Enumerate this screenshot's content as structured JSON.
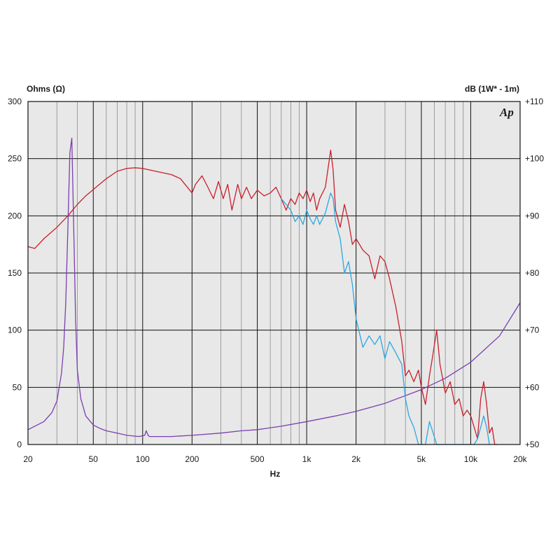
{
  "chart_data": {
    "type": "line",
    "left_axis_title": "Ohms (Ω)",
    "right_axis_title": "dB (1W* - 1m)",
    "x_axis_title": "Hz",
    "logo_text": "Ap",
    "x_scale": "log",
    "xlim": [
      20,
      20000
    ],
    "left_ylim": [
      0,
      300
    ],
    "right_ylim": [
      50,
      110
    ],
    "grid": true,
    "x_tick_labels": [
      {
        "value": 20,
        "label": "20"
      },
      {
        "value": 50,
        "label": "50"
      },
      {
        "value": 100,
        "label": "100"
      },
      {
        "value": 200,
        "label": "200"
      },
      {
        "value": 500,
        "label": "500"
      },
      {
        "value": 1000,
        "label": "1k"
      },
      {
        "value": 2000,
        "label": "2k"
      },
      {
        "value": 5000,
        "label": "5k"
      },
      {
        "value": 10000,
        "label": "10k"
      },
      {
        "value": 20000,
        "label": "20k"
      }
    ],
    "left_tick_labels": [
      "0",
      "50",
      "100",
      "150",
      "200",
      "250",
      "300"
    ],
    "right_tick_labels": [
      "+50",
      "+60",
      "+70",
      "+80",
      "+90",
      "+100",
      "+110"
    ],
    "colors": {
      "impedance": "#7a3fb0",
      "spl_on_axis": "#c8202c",
      "spl_off_axis": "#2aa8e0",
      "plot_background": "#e8e8e8",
      "grid_major": "#111111",
      "grid_minor": "#8a8a8a"
    },
    "series": [
      {
        "axis": "left",
        "color_key": "impedance",
        "x": [
          20,
          25,
          28,
          30,
          32,
          33,
          34,
          35,
          36,
          37,
          38,
          39,
          40,
          42,
          45,
          50,
          55,
          60,
          70,
          80,
          95,
          103,
          105,
          108,
          110,
          150,
          200,
          300,
          400,
          500,
          700,
          1000,
          1500,
          2000,
          3000,
          5000,
          7000,
          10000,
          15000,
          20000
        ],
        "y": [
          13,
          20,
          28,
          38,
          62,
          85,
          125,
          190,
          255,
          268,
          190,
          110,
          65,
          40,
          25,
          17,
          14,
          12,
          10,
          8,
          7,
          8,
          12,
          8,
          7,
          7,
          8,
          10,
          12,
          13,
          16,
          20,
          25,
          29,
          36,
          48,
          58,
          72,
          95,
          124
        ]
      },
      {
        "axis": "right",
        "color_key": "spl_on_axis",
        "x": [
          20,
          22,
          25,
          30,
          35,
          40,
          45,
          50,
          60,
          70,
          80,
          90,
          100,
          120,
          150,
          170,
          200,
          210,
          230,
          250,
          270,
          290,
          310,
          330,
          350,
          380,
          400,
          430,
          460,
          500,
          550,
          600,
          650,
          700,
          750,
          800,
          850,
          900,
          950,
          1000,
          1050,
          1100,
          1150,
          1200,
          1300,
          1400,
          1450,
          1500,
          1600,
          1700,
          1800,
          1900,
          2000,
          2200,
          2400,
          2600,
          2800,
          3000,
          3200,
          3500,
          3800,
          4000,
          4200,
          4500,
          4800,
          5000,
          5300,
          5600,
          5900,
          6200,
          6500,
          7000,
          7500,
          8000,
          8500,
          9000,
          9500,
          10000,
          10500,
          11000,
          11500,
          12000,
          12500,
          13000,
          13500,
          14000,
          14500
        ],
        "y": [
          84.6,
          84.3,
          86,
          88,
          90,
          92,
          93.5,
          94.6,
          96.5,
          97.8,
          98.3,
          98.4,
          98.3,
          97.8,
          97.2,
          96.5,
          94,
          95.5,
          97,
          95,
          93,
          96,
          93,
          95.5,
          91,
          95.5,
          93,
          95,
          93,
          94.5,
          93.5,
          94,
          95,
          93,
          91,
          93,
          92,
          94,
          93,
          94.5,
          92.5,
          94,
          91,
          93,
          95,
          101.5,
          98,
          91,
          88,
          92,
          89,
          85,
          86,
          84,
          83,
          79,
          83,
          82,
          79,
          74,
          68,
          62,
          63,
          61,
          63,
          60,
          57,
          62,
          66,
          70,
          64,
          59,
          61,
          57,
          58,
          55,
          56,
          55,
          53,
          51,
          58,
          61,
          57,
          52,
          53,
          50,
          50
        ]
      },
      {
        "axis": "right",
        "color_key": "spl_off_axis",
        "x": [
          700,
          750,
          800,
          850,
          900,
          950,
          1000,
          1050,
          1100,
          1150,
          1200,
          1300,
          1400,
          1450,
          1500,
          1600,
          1700,
          1800,
          1900,
          2000,
          2200,
          2400,
          2600,
          2800,
          3000,
          3200,
          3500,
          3800,
          4000,
          4200,
          4500,
          4800,
          5000,
          5300,
          5600,
          5900,
          6200,
          6500,
          6800,
          7000,
          7500,
          8000,
          8500,
          9000,
          9500,
          10000,
          10500,
          11000,
          11500,
          12000,
          12500,
          13000
        ],
        "y": [
          93,
          92,
          91,
          89,
          90,
          88.5,
          91,
          89.5,
          88.5,
          90,
          88.5,
          90.5,
          94,
          93,
          89,
          86,
          80,
          82,
          78,
          72,
          67,
          69,
          67.5,
          69,
          65,
          68,
          66,
          64,
          58,
          55,
          53,
          48,
          50,
          50,
          54,
          52,
          48,
          50,
          49,
          48,
          47,
          47,
          48,
          48,
          48,
          48,
          49,
          51,
          53,
          55,
          53,
          48
        ]
      }
    ]
  }
}
